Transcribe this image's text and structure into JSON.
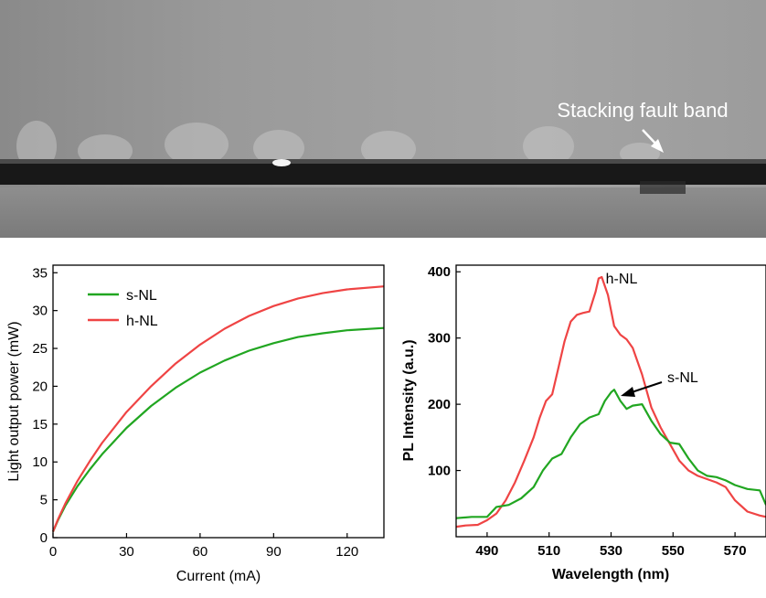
{
  "image_annotation": {
    "label": "Stacking fault band"
  },
  "colors": {
    "green": "#21a621",
    "red": "#ef4444",
    "axis": "#000000"
  },
  "chart_data": [
    {
      "type": "line",
      "xlabel": "Current (mA)",
      "ylabel": "Light output power (mW)",
      "xlim": [
        0,
        135
      ],
      "ylim": [
        0,
        36
      ],
      "xticks": [
        0,
        30,
        60,
        90,
        120
      ],
      "yticks": [
        0,
        5,
        10,
        15,
        20,
        25,
        30,
        35
      ],
      "legend_position": "top-left",
      "series": [
        {
          "name": "s-NL",
          "color": "green",
          "x": [
            0,
            2,
            5,
            10,
            15,
            20,
            30,
            40,
            50,
            60,
            70,
            80,
            90,
            100,
            110,
            120,
            135
          ],
          "y": [
            0.8,
            2.3,
            4.2,
            6.8,
            9.0,
            11.0,
            14.5,
            17.4,
            19.8,
            21.8,
            23.4,
            24.7,
            25.7,
            26.5,
            27.0,
            27.4,
            27.7
          ]
        },
        {
          "name": "h-NL",
          "color": "red",
          "x": [
            0,
            2,
            5,
            10,
            15,
            20,
            30,
            40,
            50,
            60,
            70,
            80,
            90,
            100,
            110,
            120,
            135
          ],
          "y": [
            0.8,
            2.4,
            4.5,
            7.5,
            10.1,
            12.5,
            16.6,
            20.0,
            23.0,
            25.5,
            27.6,
            29.3,
            30.6,
            31.6,
            32.3,
            32.8,
            33.2
          ]
        }
      ]
    },
    {
      "type": "line",
      "xlabel": "Wavelength (nm)",
      "ylabel": "PL Intensity (a.u.)",
      "xlim": [
        480,
        580
      ],
      "ylim": [
        0,
        410
      ],
      "xticks": [
        490,
        510,
        530,
        550,
        570
      ],
      "yticks": [
        100,
        200,
        300,
        400
      ],
      "annotations": [
        {
          "text": "h-NL",
          "x": 526,
          "y": 392,
          "arrow": false
        },
        {
          "text": "s-NL",
          "x": 531,
          "y": 222,
          "arrow": true
        }
      ],
      "series": [
        {
          "name": "h-NL",
          "color": "red",
          "x": [
            480,
            483,
            487,
            490,
            493,
            496,
            499,
            502,
            505,
            507,
            509,
            511,
            513,
            515,
            517,
            519,
            521,
            523,
            525,
            526,
            527,
            529,
            531,
            533,
            535,
            537,
            540,
            543,
            546,
            549,
            552,
            555,
            558,
            561,
            564,
            567,
            570,
            574,
            578,
            580
          ],
          "y": [
            15,
            17,
            18,
            25,
            35,
            55,
            82,
            115,
            150,
            180,
            205,
            215,
            255,
            295,
            325,
            335,
            338,
            340,
            370,
            390,
            392,
            365,
            318,
            305,
            298,
            285,
            245,
            195,
            165,
            140,
            115,
            100,
            92,
            87,
            82,
            75,
            55,
            38,
            32,
            30
          ]
        },
        {
          "name": "s-NL",
          "color": "green",
          "x": [
            480,
            485,
            490,
            493,
            497,
            501,
            505,
            508,
            511,
            514,
            517,
            520,
            523,
            526,
            528,
            530,
            531,
            533,
            535,
            537,
            540,
            543,
            546,
            549,
            552,
            555,
            558,
            561,
            564,
            567,
            570,
            574,
            578,
            580
          ],
          "y": [
            28,
            30,
            30,
            45,
            48,
            58,
            75,
            100,
            118,
            125,
            150,
            170,
            180,
            185,
            205,
            218,
            222,
            205,
            193,
            198,
            200,
            175,
            155,
            142,
            140,
            118,
            100,
            92,
            90,
            85,
            78,
            72,
            70,
            48
          ]
        }
      ]
    }
  ]
}
